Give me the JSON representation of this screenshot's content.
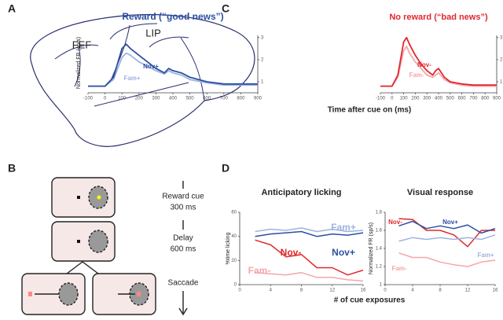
{
  "panels": {
    "a": {
      "label": "A",
      "regions": [
        "FEF",
        "LIP"
      ]
    },
    "b": {
      "label": "B",
      "steps": [
        "Reward cue",
        "300 ms",
        "Delay",
        "600 ms",
        "Saccade"
      ]
    },
    "c": {
      "label": "C"
    },
    "d": {
      "label": "D"
    }
  },
  "chart_data": [
    {
      "type": "line",
      "title": "Reward (“good news”)",
      "title_color": "#2c4fa3",
      "xlabel": "Time after cue on (ms)",
      "ylabel": "Normalized FR (sp/s)",
      "x": [
        -100,
        -50,
        0,
        50,
        100,
        125,
        150,
        200,
        250,
        300,
        350,
        375,
        400,
        450,
        500,
        600,
        700,
        800,
        900
      ],
      "xlim": [
        -100,
        900
      ],
      "xticks": [
        -100,
        0,
        100,
        200,
        300,
        400,
        500,
        600,
        700,
        800,
        900
      ],
      "ylim": [
        0.5,
        3.1
      ],
      "yticks": [
        1,
        2,
        3
      ],
      "series": [
        {
          "name": "Fam+",
          "color": "#9fb3e0",
          "values": [
            0.8,
            0.8,
            0.8,
            1.1,
            2.1,
            2.3,
            2.2,
            1.9,
            1.7,
            1.5,
            1.35,
            1.5,
            1.4,
            1.3,
            1.1,
            0.95,
            0.85,
            0.85,
            0.85
          ]
        },
        {
          "name": "Nov+",
          "color": "#2c4fa3",
          "values": [
            0.8,
            0.8,
            0.8,
            1.2,
            2.5,
            2.7,
            2.5,
            2.2,
            1.9,
            1.6,
            1.4,
            1.6,
            1.5,
            1.4,
            1.2,
            1.0,
            0.9,
            0.9,
            0.9
          ]
        }
      ]
    },
    {
      "type": "line",
      "title": "No reward (“bad news”)",
      "title_color": "#e0282e",
      "x": [
        -100,
        -50,
        0,
        50,
        100,
        125,
        150,
        200,
        250,
        300,
        350,
        375,
        400,
        450,
        500,
        600,
        700,
        800,
        900
      ],
      "xlim": [
        -100,
        900
      ],
      "xticks": [
        -100,
        0,
        100,
        200,
        300,
        400,
        500,
        600,
        700,
        800,
        900
      ],
      "ylim": [
        0.5,
        3.1
      ],
      "yticks": [
        1,
        2,
        3
      ],
      "series": [
        {
          "name": "Fam-",
          "color": "#f4a6ac",
          "values": [
            0.8,
            0.8,
            0.8,
            1.2,
            2.4,
            2.6,
            2.3,
            1.9,
            1.6,
            1.3,
            1.2,
            1.3,
            1.4,
            1.1,
            0.95,
            0.85,
            0.8,
            0.8,
            0.8
          ]
        },
        {
          "name": "Nov-",
          "color": "#e0282e",
          "values": [
            0.8,
            0.8,
            0.8,
            1.3,
            2.8,
            3.0,
            2.7,
            2.2,
            1.8,
            1.5,
            1.3,
            1.5,
            1.6,
            1.2,
            1.0,
            0.9,
            0.85,
            0.85,
            0.85
          ]
        }
      ]
    },
    {
      "type": "line",
      "title": "Anticipatory licking",
      "xlabel": "# of cue exposures",
      "ylabel": "%time licking",
      "x": [
        2,
        4,
        6,
        8,
        10,
        12,
        14,
        16
      ],
      "xlim": [
        0,
        16
      ],
      "xticks": [
        0,
        4,
        8,
        12,
        16
      ],
      "ylim": [
        0,
        60
      ],
      "yticks": [
        0,
        20,
        40,
        60
      ],
      "series": [
        {
          "name": "Fam+",
          "color": "#9fb3e0",
          "values": [
            44,
            46,
            45,
            47,
            44,
            46,
            44,
            45
          ]
        },
        {
          "name": "Nov+",
          "color": "#2c4fa3",
          "values": [
            40,
            42,
            43,
            44,
            40,
            42,
            41,
            43
          ]
        },
        {
          "name": "Nov-",
          "color": "#e0282e",
          "values": [
            37,
            33,
            23,
            25,
            14,
            14,
            8,
            12
          ]
        },
        {
          "name": "Fam-",
          "color": "#f4a6ac",
          "values": [
            10,
            9,
            8,
            10,
            6,
            6,
            4,
            3
          ]
        }
      ]
    },
    {
      "type": "line",
      "title": "Visual response",
      "ylabel": "Normalized FR (sp/s)",
      "x": [
        2,
        4,
        6,
        8,
        10,
        12,
        14,
        16
      ],
      "xlim": [
        0,
        16
      ],
      "xticks": [
        0,
        4,
        8,
        12,
        16
      ],
      "ylim": [
        1,
        1.8
      ],
      "yticks": [
        1,
        1.2,
        1.4,
        1.6,
        1.8
      ],
      "series": [
        {
          "name": "Nov-",
          "color": "#e0282e",
          "values": [
            1.73,
            1.72,
            1.6,
            1.6,
            1.55,
            1.42,
            1.6,
            1.6
          ]
        },
        {
          "name": "Nov+",
          "color": "#2c4fa3",
          "values": [
            1.65,
            1.7,
            1.62,
            1.65,
            1.62,
            1.66,
            1.57,
            1.62
          ]
        },
        {
          "name": "Fam+",
          "color": "#9fb3e0",
          "values": [
            1.48,
            1.52,
            1.5,
            1.52,
            1.5,
            1.52,
            1.5,
            1.55
          ]
        },
        {
          "name": "Fam-",
          "color": "#f4a6ac",
          "values": [
            1.35,
            1.3,
            1.3,
            1.25,
            1.22,
            1.2,
            1.25,
            1.27
          ]
        }
      ]
    }
  ]
}
